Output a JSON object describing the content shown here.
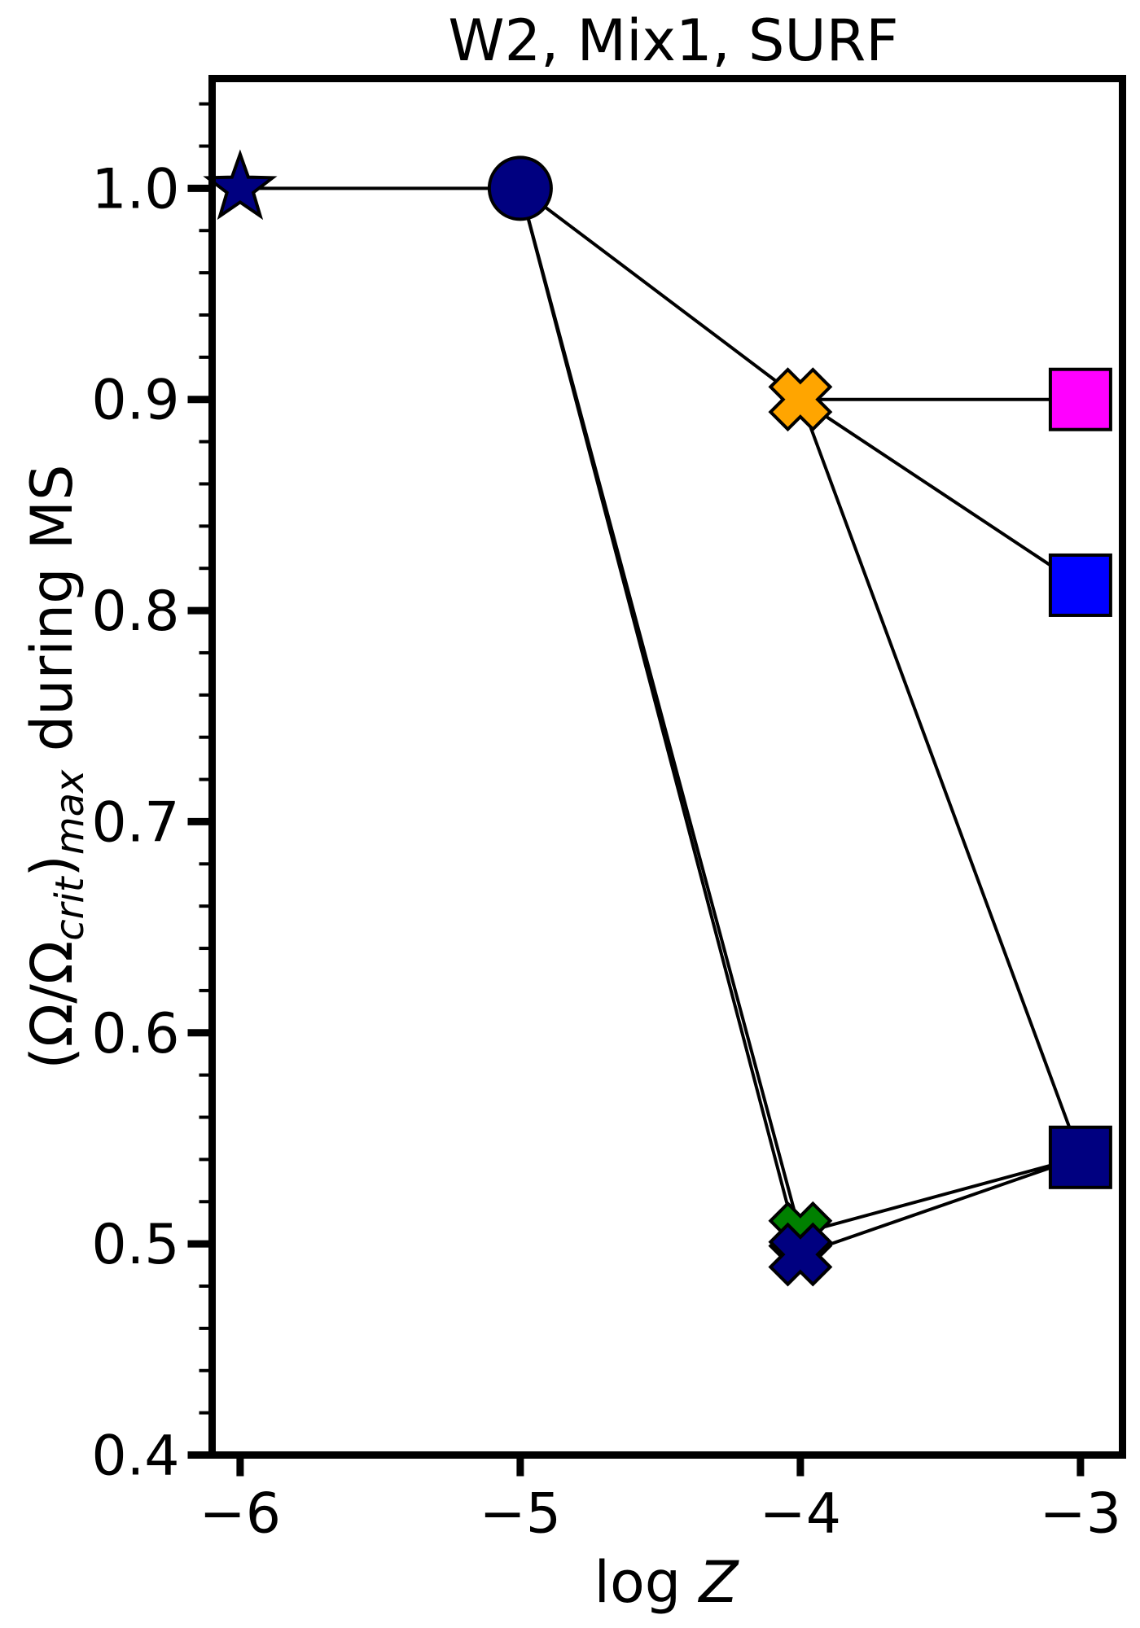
{
  "chart_data": {
    "type": "scatter",
    "title": "W2, Mix1, SURF",
    "xlabel": {
      "prefix": "log ",
      "var": "Z"
    },
    "ylabel": {
      "text": "(Ω/Ω",
      "sub1": "crit",
      "mid": ")",
      "sub2": "max",
      "suffix": " during MS"
    },
    "xlim": [
      -6.1,
      -2.85
    ],
    "ylim": [
      0.4,
      1.052
    ],
    "xticks": [
      -6,
      -5,
      -4,
      -3
    ],
    "xtick_labels": [
      "−6",
      "−5",
      "−4",
      "−3"
    ],
    "yticks": [
      0.4,
      0.5,
      0.6,
      0.7,
      0.8,
      0.9,
      1.0
    ],
    "ytick_labels": [
      "0.4",
      "0.5",
      "0.6",
      "0.7",
      "0.8",
      "0.9",
      "1.0"
    ],
    "grid": false,
    "points": [
      {
        "id": "star",
        "x": -6,
        "y": 1.0,
        "marker": "star",
        "color": "#000080"
      },
      {
        "id": "circle",
        "x": -5,
        "y": 1.0,
        "marker": "circle",
        "color": "#000080"
      },
      {
        "id": "x-orange",
        "x": -4,
        "y": 0.9,
        "marker": "x",
        "color": "#FFA500"
      },
      {
        "id": "x-green",
        "x": -4,
        "y": 0.505,
        "marker": "x",
        "color": "#008000"
      },
      {
        "id": "x-navy",
        "x": -4,
        "y": 0.495,
        "marker": "x",
        "color": "#000080"
      },
      {
        "id": "square-magenta",
        "x": -3,
        "y": 0.9,
        "marker": "square",
        "color": "#FF00FF"
      },
      {
        "id": "square-blue",
        "x": -3,
        "y": 0.812,
        "marker": "square",
        "color": "#0000FF"
      },
      {
        "id": "square-navy",
        "x": -3,
        "y": 0.541,
        "marker": "square",
        "color": "#000080"
      }
    ],
    "segments": [
      {
        "from": "star",
        "to": "circle"
      },
      {
        "from": "circle",
        "to": "x-orange"
      },
      {
        "from": "circle",
        "to": "x-green"
      },
      {
        "from": "circle",
        "to": "x-navy"
      },
      {
        "from": "x-orange",
        "to": "square-magenta"
      },
      {
        "from": "x-orange",
        "to": "square-blue"
      },
      {
        "from": "x-orange",
        "to": "square-navy"
      },
      {
        "from": "x-green",
        "to": "square-navy"
      },
      {
        "from": "x-navy",
        "to": "square-navy"
      }
    ]
  }
}
